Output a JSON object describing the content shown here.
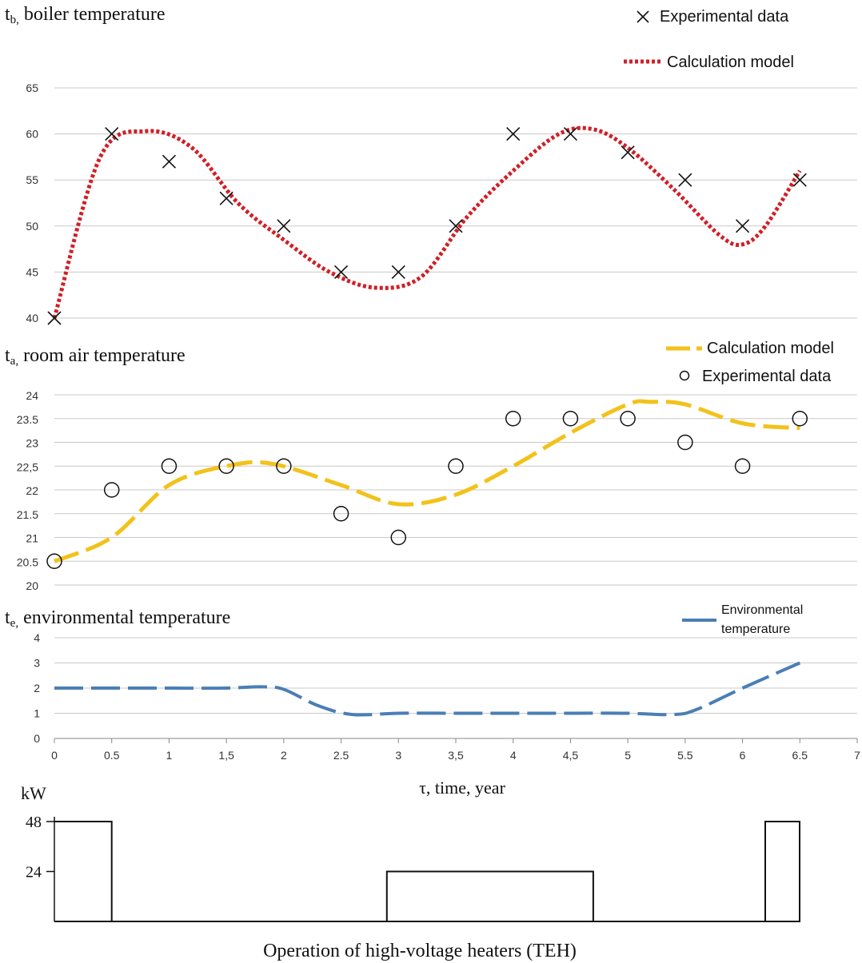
{
  "chart_data": [
    {
      "type": "line",
      "title": "tb, boiler temperature",
      "ylim": [
        40,
        65
      ],
      "yticks": [
        "40",
        "45",
        "50",
        "55",
        "60",
        "65"
      ],
      "x": [
        0,
        0.5,
        1,
        1.5,
        2,
        2.5,
        3,
        3.5,
        4,
        4.5,
        5,
        5.5,
        6,
        6.5
      ],
      "grid": true,
      "legend": "top-right",
      "colors": {
        "model": "#d01f27",
        "experimental": "#111111"
      },
      "series": [
        {
          "name": "Experimental data",
          "marker": "x",
          "values": [
            40,
            60,
            57,
            53,
            50,
            45,
            45,
            50,
            60,
            60,
            58,
            55,
            50,
            55
          ]
        },
        {
          "name": "Calculation model",
          "style": "dotted",
          "x": [
            0,
            0.4,
            0.8,
            1.2,
            1.6,
            2,
            2.4,
            2.8,
            3.2,
            3.6,
            4,
            4.4,
            4.7,
            5,
            5.4,
            5.8,
            6,
            6.2,
            6.5
          ],
          "values": [
            40,
            57.5,
            60.3,
            58.5,
            52.5,
            48.5,
            45,
            43.3,
            44.5,
            51,
            56,
            60,
            60.5,
            58.5,
            54,
            49,
            48,
            50,
            56
          ]
        }
      ]
    },
    {
      "type": "line",
      "title": "ta, room air temperature",
      "ylim": [
        20,
        24
      ],
      "yticks": [
        "20",
        "20.5",
        "21",
        "21.5",
        "22",
        "22,5",
        "23",
        "23.5",
        "24"
      ],
      "x": [
        0,
        0.5,
        1,
        1.5,
        2,
        2.5,
        3,
        3.5,
        4,
        4.5,
        5,
        5.5,
        6,
        6.5
      ],
      "grid": true,
      "legend": "top-right",
      "colors": {
        "model": "#f2c21b",
        "experimental": "#111111"
      },
      "series": [
        {
          "name": "Calculation model",
          "style": "dashed",
          "x": [
            0,
            0.5,
            1,
            1.5,
            1.9,
            2.5,
            3,
            3.5,
            4,
            4.5,
            5,
            5.2,
            5.5,
            6,
            6.5
          ],
          "values": [
            20.5,
            21.0,
            22.1,
            22.5,
            22.55,
            22.1,
            21.7,
            21.9,
            22.5,
            23.2,
            23.8,
            23.85,
            23.8,
            23.4,
            23.3
          ]
        },
        {
          "name": "Experimental data",
          "marker": "circle",
          "values": [
            20.5,
            22,
            22.5,
            22.5,
            22.5,
            21.5,
            21,
            22.5,
            23.5,
            23.5,
            23.5,
            23,
            22.5,
            23.5
          ]
        }
      ]
    },
    {
      "type": "line",
      "title": "te, environmental temperature",
      "ylim": [
        0,
        4
      ],
      "xlim": [
        0,
        7
      ],
      "yticks": [
        "0",
        "1",
        "2",
        "3",
        "4"
      ],
      "xticks": [
        "0",
        "0.5",
        "1",
        "1,5",
        "2",
        "2.5",
        "3",
        "3,5",
        "4",
        "4,5",
        "5",
        "5.5",
        "6",
        "6.5",
        "7"
      ],
      "xlabel": "τ, time, year",
      "grid": true,
      "legend": "top-right",
      "colors": {
        "model": "#4a7eb5"
      },
      "series": [
        {
          "name": "Environmental temperature",
          "style": "dashed",
          "x": [
            0,
            0.5,
            1,
            1.5,
            1.8,
            2,
            2.3,
            2.6,
            3,
            3.5,
            4,
            4.5,
            5,
            5.4,
            5.6,
            6,
            6.5
          ],
          "values": [
            2,
            2,
            2,
            2,
            2.05,
            1.95,
            1.3,
            0.95,
            1,
            1,
            1,
            1,
            1,
            0.95,
            1.15,
            2.0,
            3.0
          ]
        }
      ]
    },
    {
      "type": "line",
      "title": "Operation of high-voltage heaters (TEH)",
      "ylabel": "kW",
      "yticks": [
        "24",
        "48"
      ],
      "series": [
        {
          "style": "step",
          "x": [
            0,
            0.5,
            0.5,
            2.9,
            2.9,
            4.7,
            4.7,
            6.2,
            6.2,
            6.5
          ],
          "values": [
            48,
            48,
            0,
            0,
            24,
            24,
            0,
            0,
            48,
            48
          ]
        }
      ]
    }
  ],
  "labels": {
    "boiler_title_t": "t",
    "boiler_title_sub": "b,",
    "boiler_title_rest": " boiler temperature",
    "room_title_t": "t",
    "room_title_sub": "a,",
    "room_title_rest": " room air temperature",
    "env_title_t": "t",
    "env_title_sub": "e,",
    "env_title_rest": " environmental temperature",
    "legend_exp": "Experimental data",
    "legend_model": "Calculation model",
    "legend_env_1": "Environmental",
    "legend_env_2": "temperature",
    "x_axis_label": "τ, time, year",
    "kw_label": "kW",
    "teh_caption": "Operation of high-voltage heaters (TEH)"
  }
}
